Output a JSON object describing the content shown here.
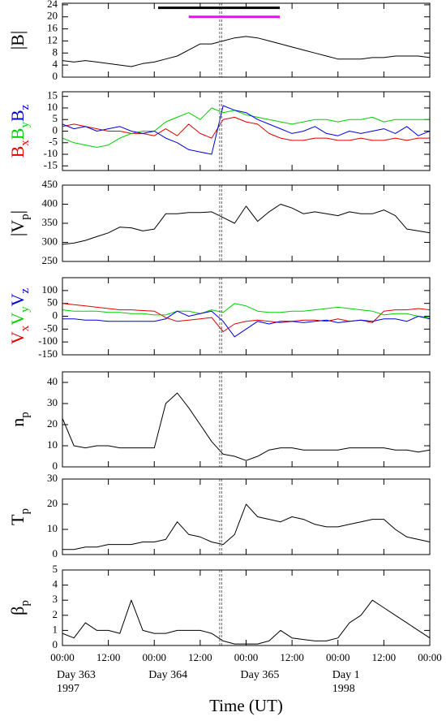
{
  "chart_data": [
    {
      "type": "line",
      "ylabel": [
        {
          "text": "|B|"
        }
      ],
      "xlim": [
        0,
        96
      ],
      "ylim": [
        0,
        24.5
      ],
      "yticks": [
        0,
        4,
        8,
        12,
        16,
        20,
        24
      ],
      "vline": 41.3,
      "color": "#000000",
      "intervals": [
        {
          "start": 25,
          "end": 56.8,
          "level": 23,
          "color": "#000000"
        },
        {
          "start": 33,
          "end": 56.8,
          "level": 20,
          "color": "#ff00ff"
        }
      ],
      "x": [
        0,
        3,
        6,
        9,
        12,
        15,
        18,
        21,
        24,
        27,
        30,
        33,
        36,
        39,
        42,
        45,
        48,
        51,
        54,
        57,
        60,
        63,
        66,
        69,
        72,
        75,
        78,
        81,
        84,
        87,
        90,
        93,
        96
      ],
      "values": [
        5.5,
        5,
        5.5,
        5,
        4.5,
        4,
        3.5,
        4.5,
        5,
        6,
        7,
        9,
        11,
        11,
        12,
        13,
        13.5,
        13,
        12,
        11,
        10,
        9,
        8,
        7,
        6,
        6,
        6,
        6.5,
        6.5,
        7,
        7,
        7,
        6.5
      ]
    },
    {
      "type": "line",
      "xlim": [
        0,
        96
      ],
      "ylim": [
        -17,
        17
      ],
      "yticks": [
        -15,
        -10,
        -5,
        0,
        5,
        10,
        15
      ],
      "vline": 41.3,
      "x": [
        0,
        3,
        6,
        9,
        12,
        15,
        18,
        21,
        24,
        27,
        30,
        33,
        36,
        39,
        42,
        45,
        48,
        51,
        54,
        57,
        60,
        63,
        66,
        69,
        72,
        75,
        78,
        81,
        84,
        87,
        90,
        93,
        96
      ],
      "series": [
        {
          "name": "B",
          "sub": "x",
          "color": "#e00000",
          "values": [
            2,
            3,
            2,
            1,
            0,
            0,
            -1,
            -1,
            -2,
            1,
            -2,
            3,
            -1,
            -3,
            5,
            6,
            4,
            3,
            -1,
            -3,
            -4,
            -4,
            -3,
            -3,
            -4,
            -4,
            -3,
            -4,
            -4,
            -3,
            -4,
            -3,
            -3
          ]
        },
        {
          "name": "B",
          "sub": "y",
          "color": "#00d000",
          "values": [
            -3,
            -5,
            -6,
            -7,
            -6,
            -3,
            -1,
            0,
            0,
            4,
            6,
            8,
            5,
            10,
            8,
            9,
            7,
            6,
            5,
            4,
            3,
            4,
            5,
            5,
            4,
            5,
            5,
            6,
            4,
            5,
            5,
            5,
            5
          ]
        },
        {
          "name": "B",
          "sub": "z",
          "color": "#0000e0",
          "values": [
            3,
            1,
            2,
            0,
            1,
            2,
            0,
            -1,
            0,
            -3,
            -5,
            -8,
            -9,
            -10,
            11,
            9,
            8,
            5,
            3,
            1,
            -1,
            0,
            2,
            -1,
            -2,
            0,
            -1,
            0,
            1,
            -1,
            2,
            -2,
            0
          ]
        }
      ]
    },
    {
      "type": "line",
      "ylabel": [
        {
          "text": "|V"
        },
        {
          "sub": "p"
        },
        {
          "text": "|"
        }
      ],
      "xlim": [
        0,
        96
      ],
      "ylim": [
        250,
        450
      ],
      "yticks": [
        250,
        300,
        350,
        400,
        450
      ],
      "vline": 41.3,
      "color": "#000000",
      "x": [
        0,
        3,
        6,
        9,
        12,
        15,
        18,
        21,
        24,
        27,
        30,
        33,
        36,
        39,
        42,
        45,
        48,
        51,
        54,
        57,
        60,
        63,
        66,
        69,
        72,
        75,
        78,
        81,
        84,
        87,
        90,
        93,
        96
      ],
      "values": [
        295,
        298,
        305,
        315,
        325,
        340,
        338,
        330,
        335,
        375,
        375,
        378,
        378,
        380,
        365,
        350,
        395,
        355,
        380,
        400,
        390,
        375,
        380,
        375,
        370,
        380,
        375,
        375,
        385,
        370,
        335,
        330,
        325
      ]
    },
    {
      "type": "line",
      "xlim": [
        0,
        96
      ],
      "ylim": [
        -150,
        150
      ],
      "yticks": [
        -150,
        -100,
        -50,
        0,
        50,
        100
      ],
      "vline": 41.3,
      "x": [
        0,
        3,
        6,
        9,
        12,
        15,
        18,
        21,
        24,
        27,
        30,
        33,
        36,
        39,
        42,
        45,
        48,
        51,
        54,
        57,
        60,
        63,
        66,
        69,
        72,
        75,
        78,
        81,
        84,
        87,
        90,
        93,
        96
      ],
      "series": [
        {
          "name": "V",
          "sub": "x",
          "color": "#e00000",
          "values": [
            50,
            45,
            40,
            35,
            30,
            25,
            25,
            22,
            20,
            -5,
            -20,
            -15,
            -10,
            -5,
            -60,
            -30,
            -20,
            -15,
            -20,
            -25,
            -20,
            -15,
            -15,
            -20,
            -10,
            -20,
            -15,
            -25,
            20,
            25,
            25,
            30,
            25
          ]
        },
        {
          "name": "V",
          "sub": "y",
          "color": "#00d000",
          "values": [
            25,
            20,
            20,
            20,
            15,
            15,
            10,
            10,
            5,
            5,
            20,
            20,
            10,
            25,
            15,
            50,
            40,
            20,
            15,
            15,
            20,
            20,
            25,
            30,
            35,
            30,
            25,
            20,
            5,
            10,
            10,
            0,
            -5
          ]
        },
        {
          "name": "V",
          "sub": "z",
          "color": "#0000e0",
          "values": [
            -10,
            -10,
            -15,
            -15,
            -20,
            -20,
            -20,
            -20,
            -20,
            -10,
            20,
            0,
            10,
            20,
            -20,
            -80,
            -50,
            -20,
            -30,
            -20,
            -20,
            -25,
            -20,
            -15,
            -25,
            -20,
            -15,
            -20,
            -10,
            -10,
            -20,
            0,
            -10
          ]
        }
      ]
    },
    {
      "type": "line",
      "ylabel": [
        {
          "text": "n"
        },
        {
          "sub": "p"
        }
      ],
      "xlim": [
        0,
        96
      ],
      "ylim": [
        0,
        45
      ],
      "yticks": [
        0,
        10,
        20,
        30,
        40
      ],
      "vline": 41.3,
      "color": "#000000",
      "x": [
        0,
        3,
        6,
        9,
        12,
        15,
        18,
        21,
        24,
        27,
        30,
        33,
        36,
        39,
        42,
        45,
        48,
        51,
        54,
        57,
        60,
        63,
        66,
        69,
        72,
        75,
        78,
        81,
        84,
        87,
        90,
        93,
        96
      ],
      "values": [
        23,
        10,
        9,
        10,
        10,
        9,
        9,
        9,
        9,
        30,
        35,
        28,
        20,
        12,
        6,
        5,
        3,
        5,
        8,
        9,
        9,
        8,
        8,
        8,
        8,
        9,
        9,
        9,
        9,
        8,
        8,
        7,
        8
      ]
    },
    {
      "type": "line",
      "ylabel": [
        {
          "text": "T"
        },
        {
          "sub": "p"
        }
      ],
      "xlim": [
        0,
        96
      ],
      "ylim": [
        0,
        30
      ],
      "yticks": [
        0,
        10,
        20,
        30
      ],
      "vline": 41.3,
      "color": "#000000",
      "x": [
        0,
        3,
        6,
        9,
        12,
        15,
        18,
        21,
        24,
        27,
        30,
        33,
        36,
        39,
        42,
        45,
        48,
        51,
        54,
        57,
        60,
        63,
        66,
        69,
        72,
        75,
        78,
        81,
        84,
        87,
        90,
        93,
        96
      ],
      "values": [
        2,
        2,
        3,
        3,
        4,
        4,
        4,
        5,
        5,
        6,
        13,
        8,
        7,
        5,
        4,
        8,
        20,
        15,
        14,
        13,
        15,
        14,
        12,
        11,
        11,
        12,
        13,
        14,
        14,
        10,
        7,
        6,
        5
      ]
    },
    {
      "type": "line",
      "ylabel": [
        {
          "text": "β"
        },
        {
          "sub": "p"
        }
      ],
      "xlim": [
        0,
        96
      ],
      "ylim": [
        0,
        5
      ],
      "yticks": [
        0,
        1,
        2,
        3,
        4,
        5
      ],
      "vline": 41.3,
      "color": "#000000",
      "x": [
        0,
        3,
        6,
        9,
        12,
        15,
        18,
        21,
        24,
        27,
        30,
        33,
        36,
        39,
        42,
        45,
        48,
        51,
        54,
        57,
        60,
        63,
        66,
        69,
        72,
        75,
        78,
        81,
        84,
        87,
        90,
        93,
        96
      ],
      "values": [
        0.8,
        0.5,
        1.5,
        1,
        1,
        0.8,
        3,
        1,
        0.8,
        0.8,
        1,
        1,
        1,
        0.8,
        0.3,
        0.1,
        0.1,
        0.1,
        0.3,
        1,
        0.5,
        0.4,
        0.3,
        0.3,
        0.5,
        1.5,
        2,
        3,
        2.5,
        2,
        1.5,
        1,
        0.5
      ],
      "xticks": [
        {
          "value": 0,
          "label": "00:00"
        },
        {
          "value": 12,
          "label": "12:00"
        },
        {
          "value": 24,
          "label": "00:00"
        },
        {
          "value": 36,
          "label": "12:00"
        },
        {
          "value": 48,
          "label": "00:00"
        },
        {
          "value": 60,
          "label": "12:00"
        },
        {
          "value": 72,
          "label": "00:00"
        },
        {
          "value": 84,
          "label": "12:00"
        },
        {
          "value": 96,
          "label": "00:00"
        }
      ],
      "annotations": [
        {
          "x": 0,
          "label": "Day 363",
          "sublabel": "1997"
        },
        {
          "x": 24,
          "label": "Day 364"
        },
        {
          "x": 48,
          "label": "Day 365"
        },
        {
          "x": 72,
          "label": "Day 1",
          "sublabel": "1998"
        }
      ],
      "xlabel": "Time (UT)"
    }
  ]
}
